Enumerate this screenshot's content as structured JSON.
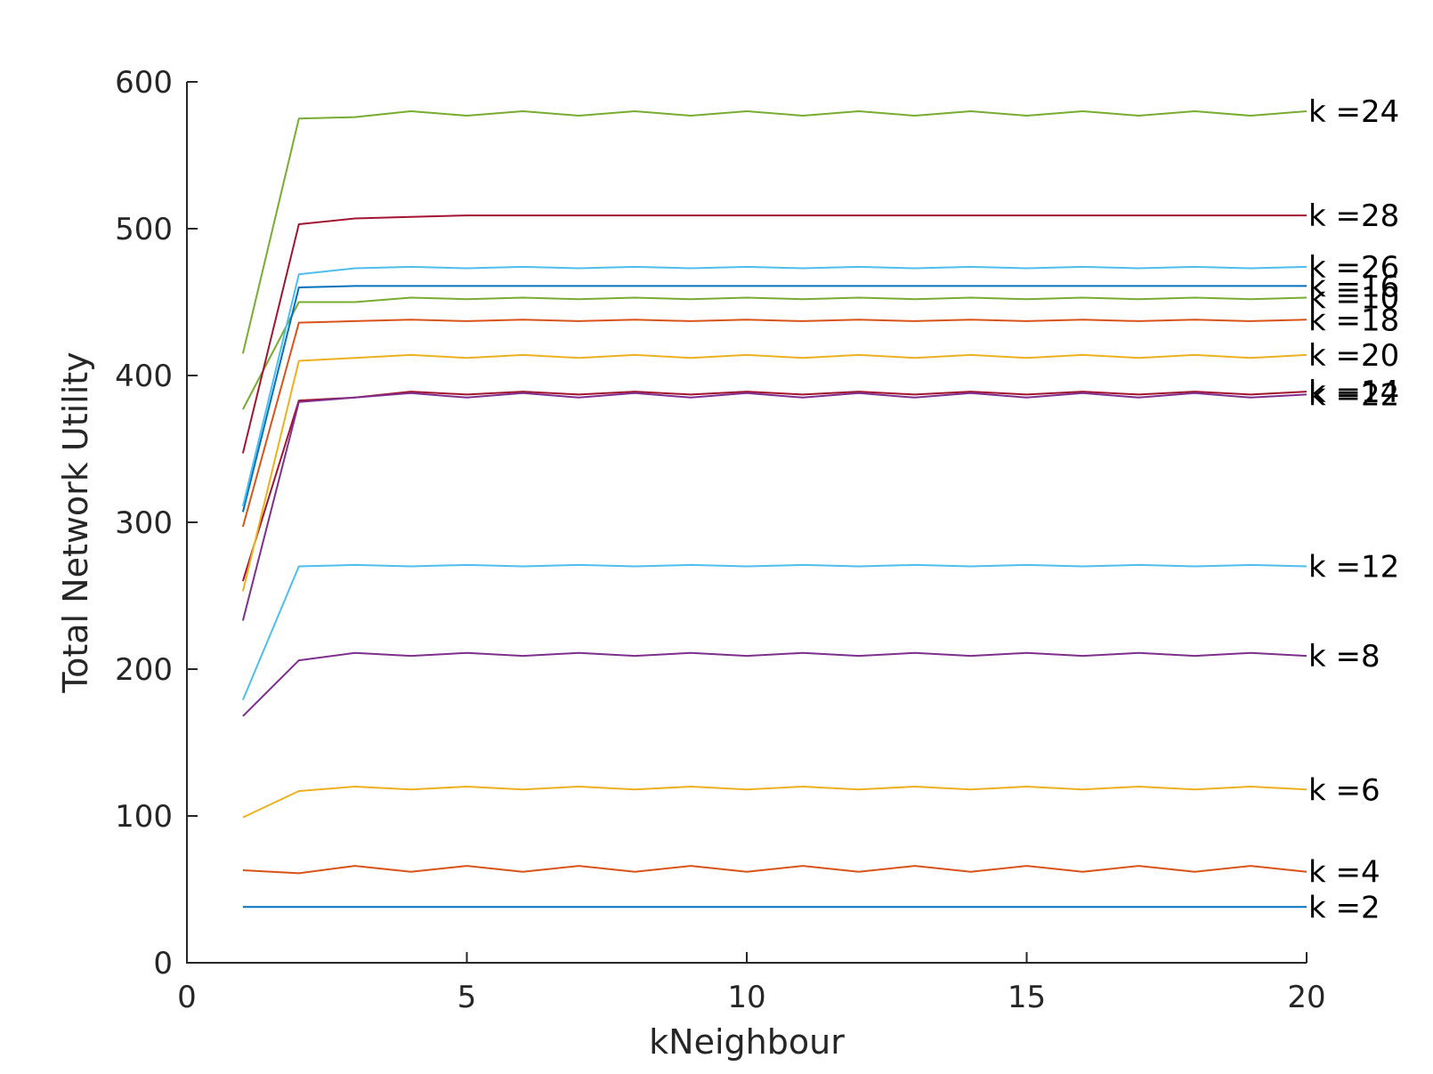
{
  "chart_data": {
    "type": "line",
    "title": "",
    "xlabel": "kNeighbour",
    "ylabel": "Total Network Utility",
    "xlim": [
      0,
      20
    ],
    "ylim": [
      0,
      600
    ],
    "xticks": [
      "0",
      "5",
      "10",
      "15",
      "20"
    ],
    "yticks": [
      "0",
      "100",
      "200",
      "300",
      "400",
      "500",
      "600"
    ],
    "grid": false,
    "legend": "inline-right",
    "x": [
      1,
      2,
      3,
      4,
      5,
      6,
      7,
      8,
      9,
      10,
      11,
      12,
      13,
      14,
      15,
      16,
      17,
      18,
      19,
      20
    ],
    "series": [
      {
        "name": "k =2",
        "color": "#0072BD",
        "values": [
          38,
          38,
          38,
          38,
          38,
          38,
          38,
          38,
          38,
          38,
          38,
          38,
          38,
          38,
          38,
          38,
          38,
          38,
          38,
          38
        ]
      },
      {
        "name": "k =4",
        "color": "#D95319",
        "values": [
          63,
          61,
          66,
          62,
          66,
          62,
          66,
          62,
          66,
          62,
          66,
          62,
          66,
          62,
          66,
          62,
          66,
          62,
          66,
          62
        ]
      },
      {
        "name": "k =6",
        "color": "#EDB120",
        "values": [
          99,
          117,
          120,
          118,
          120,
          118,
          120,
          118,
          120,
          118,
          120,
          118,
          120,
          118,
          120,
          118,
          120,
          118,
          120,
          118
        ]
      },
      {
        "name": "k =8",
        "color": "#7E2F8E",
        "values": [
          168,
          206,
          211,
          209,
          211,
          209,
          211,
          209,
          211,
          209,
          211,
          209,
          211,
          209,
          211,
          209,
          211,
          209,
          211,
          209
        ]
      },
      {
        "name": "k =10",
        "color": "#77AC30",
        "values": [
          377,
          450,
          450,
          453,
          452,
          453,
          452,
          453,
          452,
          453,
          452,
          453,
          452,
          453,
          452,
          453,
          452,
          453,
          452,
          453
        ]
      },
      {
        "name": "k =12",
        "color": "#4DBEEE",
        "values": [
          179,
          270,
          271,
          270,
          271,
          270,
          271,
          270,
          271,
          270,
          271,
          270,
          271,
          270,
          271,
          270,
          271,
          270,
          271,
          270
        ]
      },
      {
        "name": "k =14",
        "color": "#A2142F",
        "values": [
          260,
          383,
          385,
          389,
          387,
          389,
          387,
          389,
          387,
          389,
          387,
          389,
          387,
          389,
          387,
          389,
          387,
          389,
          387,
          389
        ]
      },
      {
        "name": "k =16",
        "color": "#0072BD",
        "values": [
          307,
          460,
          461,
          461,
          461,
          461,
          461,
          461,
          461,
          461,
          461,
          461,
          461,
          461,
          461,
          461,
          461,
          461,
          461,
          461
        ]
      },
      {
        "name": "k =18",
        "color": "#D95319",
        "values": [
          297,
          436,
          437,
          438,
          437,
          438,
          437,
          438,
          437,
          438,
          437,
          438,
          437,
          438,
          437,
          438,
          437,
          438,
          437,
          438
        ]
      },
      {
        "name": "k =20",
        "color": "#EDB120",
        "values": [
          253,
          410,
          412,
          414,
          412,
          414,
          412,
          414,
          412,
          414,
          412,
          414,
          412,
          414,
          412,
          414,
          412,
          414,
          412,
          414
        ]
      },
      {
        "name": "k =22",
        "color": "#7E2F8E",
        "values": [
          233,
          382,
          385,
          388,
          385,
          388,
          385,
          388,
          385,
          388,
          385,
          388,
          385,
          388,
          385,
          388,
          385,
          388,
          385,
          387
        ]
      },
      {
        "name": "k =24",
        "color": "#77AC30",
        "values": [
          415,
          575,
          576,
          580,
          577,
          580,
          577,
          580,
          577,
          580,
          577,
          580,
          577,
          580,
          577,
          580,
          577,
          580,
          577,
          580
        ]
      },
      {
        "name": "k =26",
        "color": "#4DBEEE",
        "values": [
          311,
          469,
          473,
          474,
          473,
          474,
          473,
          474,
          473,
          474,
          473,
          474,
          473,
          474,
          473,
          474,
          473,
          474,
          473,
          474
        ]
      },
      {
        "name": "k =28",
        "color": "#A2142F",
        "values": [
          347,
          503,
          507,
          508,
          509,
          509,
          509,
          509,
          509,
          509,
          509,
          509,
          509,
          509,
          509,
          509,
          509,
          509,
          509,
          509
        ]
      }
    ]
  }
}
